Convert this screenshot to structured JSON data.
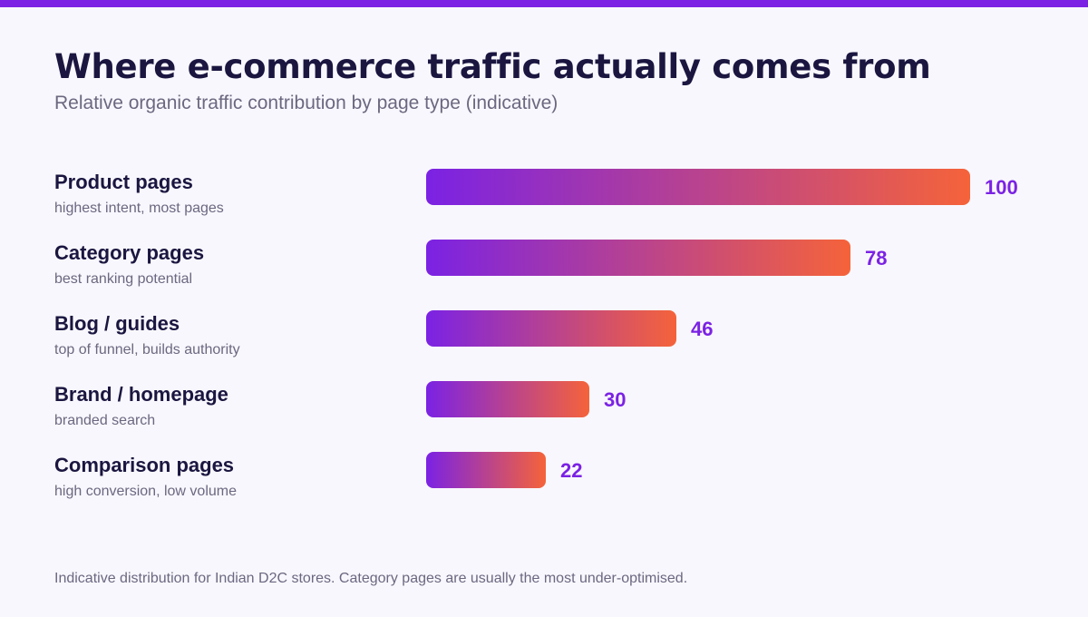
{
  "colors": {
    "accent": "#7b22e4",
    "gradient_start": "#7b22e4",
    "gradient_end": "#f5633a",
    "value_text": "#7b22e4",
    "title_text": "#1a1640",
    "muted_text": "#6b6880",
    "background": "#f8f7fd"
  },
  "footnote": "Indicative distribution for Indian D2C stores. Category pages are usually the most under-optimised.",
  "chart_data": {
    "type": "bar",
    "orientation": "horizontal",
    "title": "Where e-commerce traffic actually comes from",
    "subtitle": "Relative organic traffic contribution by page type (indicative)",
    "categories": [
      "Product pages",
      "Category pages",
      "Blog / guides",
      "Brand / homepage",
      "Comparison pages"
    ],
    "descriptions": [
      "highest intent, most pages",
      "best ranking potential",
      "top of funnel, builds authority",
      "branded search",
      "high conversion, low volume"
    ],
    "values": [
      100,
      78,
      46,
      30,
      22
    ],
    "xlim": [
      0,
      100
    ],
    "grid": false,
    "legend": "none",
    "data_labels": true
  }
}
